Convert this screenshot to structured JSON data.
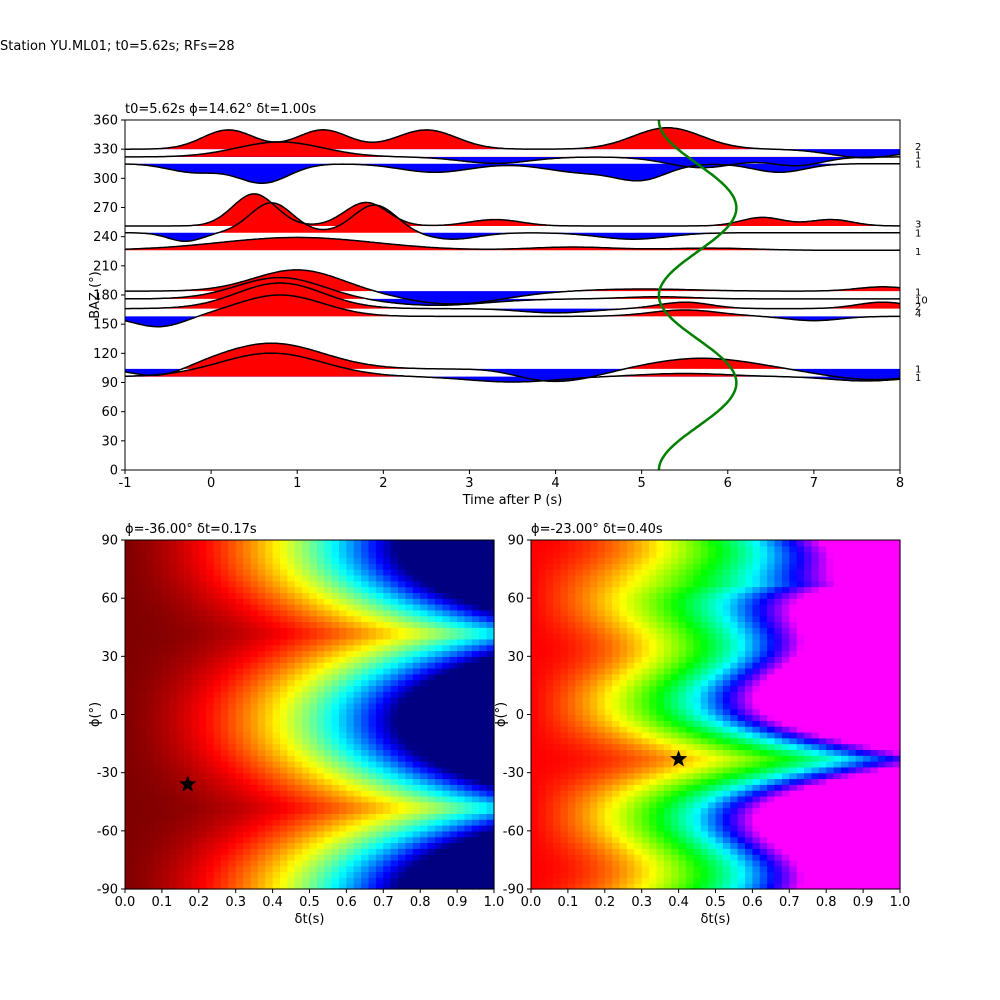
{
  "suptitle": "Station YU.ML01; t0=5.62s; RFs=28",
  "chart_data": [
    {
      "type": "line",
      "title": "t0=5.62s ϕ=14.62° δt=1.00s",
      "xlabel": "Time after P (s)",
      "ylabel": "BAZ (°)",
      "xlim": [
        -1,
        8
      ],
      "ylim": [
        0,
        360
      ],
      "xticks": [
        -1,
        0,
        1,
        2,
        3,
        4,
        5,
        6,
        7,
        8
      ],
      "yticks": [
        0,
        30,
        60,
        90,
        120,
        150,
        180,
        210,
        240,
        270,
        300,
        330,
        360
      ],
      "traces": [
        {
          "baz": 330,
          "amp": 0.0,
          "bumps": [
            [
              0.2,
              0.3,
              0.9
            ],
            [
              1.3,
              0.3,
              0.9
            ],
            [
              2.5,
              0.35,
              0.9
            ],
            [
              5.3,
              0.4,
              1.0
            ],
            [
              7.6,
              0.4,
              -0.4
            ]
          ]
        },
        {
          "baz": 322,
          "amp": 0.0,
          "bumps": [
            [
              0.8,
              0.5,
              0.7
            ],
            [
              3.3,
              0.4,
              -0.3
            ],
            [
              5.7,
              0.4,
              -0.5
            ],
            [
              6.8,
              0.3,
              -0.4
            ]
          ]
        },
        {
          "baz": 315,
          "amp": 0.0,
          "bumps": [
            [
              -0.2,
              0.3,
              -0.4
            ],
            [
              0.6,
              0.3,
              -0.9
            ],
            [
              2.6,
              0.4,
              -0.4
            ],
            [
              4.3,
              0.4,
              -0.4
            ],
            [
              5.0,
              0.3,
              -0.7
            ],
            [
              6.6,
              0.3,
              -0.4
            ]
          ]
        },
        {
          "baz": 251,
          "amp": 0.0,
          "bumps": [
            [
              0.5,
              0.25,
              1.5
            ],
            [
              1.8,
              0.25,
              1.1
            ],
            [
              3.3,
              0.3,
              0.3
            ],
            [
              6.4,
              0.25,
              0.4
            ],
            [
              7.2,
              0.25,
              0.3
            ]
          ]
        },
        {
          "baz": 244,
          "amp": 0.0,
          "bumps": [
            [
              -0.3,
              0.2,
              -0.4
            ],
            [
              0.7,
              0.25,
              1.4
            ],
            [
              1.9,
              0.25,
              1.3
            ],
            [
              2.8,
              0.3,
              -0.3
            ],
            [
              4.9,
              0.4,
              -0.3
            ]
          ]
        },
        {
          "baz": 226,
          "amp": 0.0,
          "bumps": [
            [
              1.0,
              0.9,
              0.6
            ],
            [
              4.2,
              0.5,
              0.15
            ],
            [
              5.8,
              0.5,
              0.1
            ]
          ]
        },
        {
          "baz": 184,
          "amp": 0.0,
          "bumps": [
            [
              1.0,
              0.5,
              1.0
            ],
            [
              2.8,
              0.6,
              -0.6
            ],
            [
              5.0,
              0.6,
              0.1
            ],
            [
              7.8,
              0.3,
              0.2
            ]
          ]
        },
        {
          "baz": 176,
          "amp": 0.0,
          "bumps": [
            [
              0.8,
              0.5,
              1.0
            ],
            [
              2.6,
              0.6,
              -0.3
            ],
            [
              5.2,
              0.4,
              0.1
            ]
          ]
        },
        {
          "baz": 166,
          "amp": 0.0,
          "bumps": [
            [
              0.8,
              0.5,
              1.2
            ],
            [
              4.0,
              0.4,
              -0.2
            ],
            [
              5.5,
              0.3,
              0.3
            ],
            [
              7.8,
              0.3,
              0.3
            ]
          ]
        },
        {
          "baz": 158,
          "amp": 0.0,
          "bumps": [
            [
              -0.6,
              0.3,
              -0.5
            ],
            [
              0.8,
              0.5,
              1.0
            ],
            [
              5.5,
              0.4,
              0.3
            ],
            [
              7.0,
              0.3,
              -0.2
            ]
          ]
        },
        {
          "baz": 104,
          "amp": 0.0,
          "bumps": [
            [
              -0.6,
              0.3,
              -0.4
            ],
            [
              0.7,
              0.6,
              1.2
            ],
            [
              3.3,
              0.3,
              0.1
            ],
            [
              4.0,
              0.5,
              -0.6
            ],
            [
              5.7,
              0.6,
              0.5
            ],
            [
              7.7,
              0.6,
              -0.5
            ]
          ]
        },
        {
          "baz": 96,
          "amp": 0.0,
          "bumps": [
            [
              0.7,
              0.6,
              1.1
            ],
            [
              3.5,
              0.5,
              -0.25
            ],
            [
              5.5,
              0.5,
              0.15
            ],
            [
              7.6,
              0.4,
              -0.2
            ]
          ]
        }
      ],
      "fill_bands": [
        {
          "y_lo": 325,
          "y_hi": 335,
          "positive_color": "#ff0000",
          "negative_color": "#0000ff"
        },
        {
          "y_lo": 305,
          "y_hi": 315,
          "positive_color": "#ff0000",
          "negative_color": "#0000ff"
        },
        {
          "y_lo": 245,
          "y_hi": 255,
          "positive_color": "#ff0000",
          "negative_color": "#0000ff"
        },
        {
          "y_lo": 225,
          "y_hi": 235,
          "positive_color": "#ff0000",
          "negative_color": "#0000ff"
        },
        {
          "y_lo": 175,
          "y_hi": 185,
          "positive_color": "#ff0000",
          "negative_color": "#0000ff"
        },
        {
          "y_lo": 155,
          "y_hi": 165,
          "positive_color": "#ff0000",
          "negative_color": "#0000ff"
        },
        {
          "y_lo": 95,
          "y_hi": 105,
          "positive_color": "#ff0000",
          "negative_color": "#0000ff"
        }
      ],
      "green_curve": {
        "color": "#008000",
        "t_mean": 5.65,
        "t_amp": 0.45,
        "baz_phase": 14.62
      },
      "right_counts": [
        {
          "baz": 333,
          "label": "2"
        },
        {
          "baz": 324,
          "label": "1"
        },
        {
          "baz": 315,
          "label": "1"
        },
        {
          "baz": 253,
          "label": "3"
        },
        {
          "baz": 244,
          "label": "1"
        },
        {
          "baz": 225,
          "label": "1"
        },
        {
          "baz": 183,
          "label": "1"
        },
        {
          "baz": 175,
          "label": "10"
        },
        {
          "baz": 168,
          "label": "2"
        },
        {
          "baz": 161,
          "label": "4"
        },
        {
          "baz": 104,
          "label": "1"
        },
        {
          "baz": 95,
          "label": "1"
        }
      ]
    },
    {
      "type": "heatmap",
      "title": "ϕ=-36.00° δt=0.17s",
      "xlabel": "δt(s)",
      "ylabel": "ϕ(°)",
      "xlim": [
        0.0,
        1.0
      ],
      "ylim": [
        -90,
        90
      ],
      "xticks": [
        0.0,
        0.1,
        0.2,
        0.3,
        0.4,
        0.5,
        0.6,
        0.7,
        0.8,
        0.9,
        1.0
      ],
      "yticks": [
        -90,
        -60,
        -30,
        0,
        30,
        60,
        90
      ],
      "colormap": "jet",
      "best": {
        "dt": 0.17,
        "phi": -36.0
      },
      "field": {
        "phi0": -48,
        "a_dt": 1.1,
        "a_phi": 0.3,
        "osc": 1.0,
        "scale": 0.95
      }
    },
    {
      "type": "heatmap",
      "title": "ϕ=-23.00° δt=0.40s",
      "xlabel": "δt(s)",
      "ylabel": "ϕ(°)",
      "xlim": [
        0.0,
        1.0
      ],
      "ylim": [
        -90,
        90
      ],
      "xticks": [
        0.0,
        0.1,
        0.2,
        0.3,
        0.4,
        0.5,
        0.6,
        0.7,
        0.8,
        0.9,
        1.0
      ],
      "yticks": [
        -90,
        -60,
        -30,
        0,
        30,
        60,
        90
      ],
      "colormap": "hsv",
      "best": {
        "dt": 0.4,
        "phi": -23.0
      },
      "field": {
        "phi0": -23,
        "a_dt": 1.4,
        "a_phi": 0.55,
        "osc": 1.6,
        "scale": 1.0
      }
    }
  ]
}
